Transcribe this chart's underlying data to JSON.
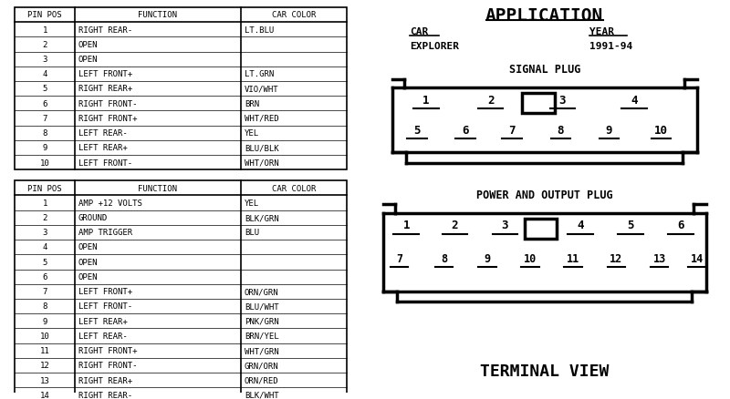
{
  "bg_color": "#ffffff",
  "border_color": "#000000",
  "text_color": "#000000",
  "font_family": "monospace",
  "table1_header": [
    "PIN POS",
    "FUNCTION",
    "CAR COLOR"
  ],
  "table1_rows": [
    [
      "1",
      "RIGHT REAR-",
      "LT.BLU"
    ],
    [
      "2",
      "OPEN",
      ""
    ],
    [
      "3",
      "OPEN",
      ""
    ],
    [
      "4",
      "LEFT FRONT+",
      "LT.GRN"
    ],
    [
      "5",
      "RIGHT REAR+",
      "VIO/WHT"
    ],
    [
      "6",
      "RIGHT FRONT-",
      "BRN"
    ],
    [
      "7",
      "RIGHT FRONT+",
      "WHT/RED"
    ],
    [
      "8",
      "LEFT REAR-",
      "YEL"
    ],
    [
      "9",
      "LEFT REAR+",
      "BLU/BLK"
    ],
    [
      "10",
      "LEFT FRONT-",
      "WHT/ORN"
    ]
  ],
  "table2_header": [
    "PIN POS",
    "FUNCTION",
    "CAR COLOR"
  ],
  "table2_rows": [
    [
      "1",
      "AMP +12 VOLTS",
      "YEL"
    ],
    [
      "2",
      "GROUND",
      "BLK/GRN"
    ],
    [
      "3",
      "AMP TRIGGER",
      "BLU"
    ],
    [
      "4",
      "OPEN",
      ""
    ],
    [
      "5",
      "OPEN",
      ""
    ],
    [
      "6",
      "OPEN",
      ""
    ],
    [
      "7",
      "LEFT FRONT+",
      "ORN/GRN"
    ],
    [
      "8",
      "LEFT FRONT-",
      "BLU/WHT"
    ],
    [
      "9",
      "LEFT REAR+",
      "PNK/GRN"
    ],
    [
      "10",
      "LEFT REAR-",
      "BRN/YEL"
    ],
    [
      "11",
      "RIGHT FRONT+",
      "WHT/GRN"
    ],
    [
      "12",
      "RIGHT FRONT-",
      "GRN/ORN"
    ],
    [
      "13",
      "RIGHT REAR+",
      "ORN/RED"
    ],
    [
      "14",
      "RIGHT REAR-",
      "BLK/WHT"
    ]
  ],
  "app_title": "APPLICATION",
  "car_label": "CAR",
  "car_value": "EXPLORER",
  "year_label": "YEAR",
  "year_value": "1991-94",
  "signal_plug_label": "SIGNAL PLUG",
  "signal_plug_row1": [
    "1",
    "2",
    "3",
    "4"
  ],
  "signal_plug_row2": [
    "5",
    "6",
    "7",
    "8",
    "9",
    "10"
  ],
  "power_plug_label": "POWER AND OUTPUT PLUG",
  "power_plug_row1": [
    "1",
    "2",
    "3",
    "4",
    "5",
    "6"
  ],
  "power_plug_row2": [
    "7",
    "8",
    "9",
    "10",
    "11",
    "12",
    "13",
    "14"
  ],
  "terminal_view_label": "TERMINAL VIEW"
}
